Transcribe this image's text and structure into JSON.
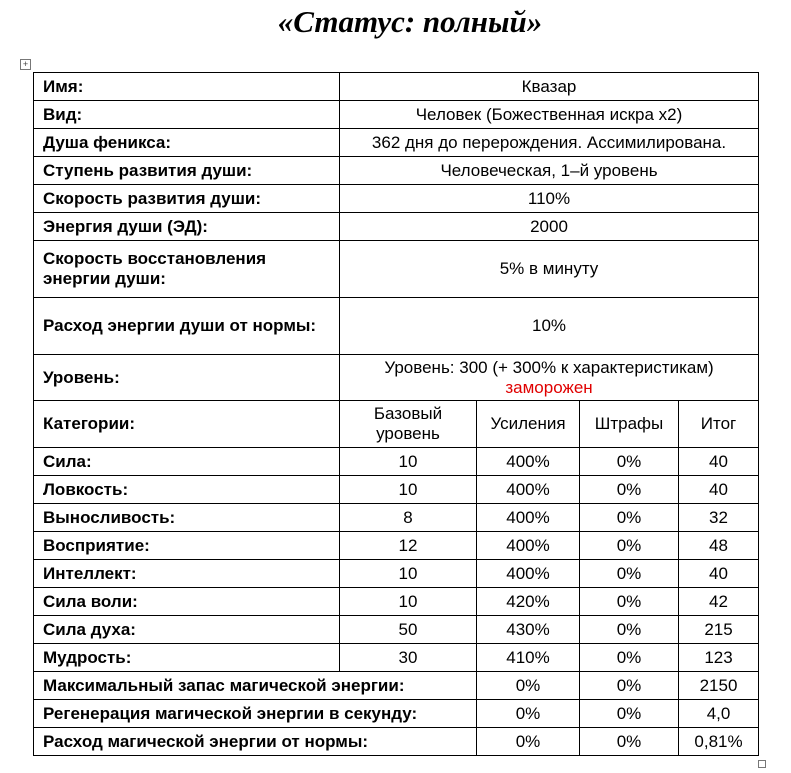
{
  "title": "«Статус: полный»",
  "info": [
    {
      "label": "Имя:",
      "value": "Квазар"
    },
    {
      "label": "Вид:",
      "value": "Человек (Божественная искра x2)"
    },
    {
      "label": "Душа феникса:",
      "value": "362 дня до перерождения. Ассимилирована."
    },
    {
      "label": "Ступень развития души:",
      "value": "Человеческая, 1–й уровень"
    },
    {
      "label": "Скорость развития души:",
      "value": "110%"
    },
    {
      "label": "Энергия души (ЭД):",
      "value": "2000"
    },
    {
      "label": "Скорость восстановления энергии души:",
      "value": "5% в минуту"
    },
    {
      "label": "Расход энергии души от нормы:",
      "value": "10%"
    }
  ],
  "level": {
    "label": "Уровень:",
    "value": "Уровень: 300 (+ 300% к характеристикам)",
    "note": "заморожен"
  },
  "stats": {
    "header": [
      "Категории:",
      "Базовый уровень",
      "Усиления",
      "Штрафы",
      "Итог"
    ],
    "rows": [
      [
        "Сила:",
        "10",
        "400%",
        "0%",
        "40"
      ],
      [
        "Ловкость:",
        "10",
        "400%",
        "0%",
        "40"
      ],
      [
        "Выносливость:",
        "8",
        "400%",
        "0%",
        "32"
      ],
      [
        "Восприятие:",
        "12",
        "400%",
        "0%",
        "48"
      ],
      [
        "Интеллект:",
        "10",
        "400%",
        "0%",
        "40"
      ],
      [
        "Сила воли:",
        "10",
        "420%",
        "0%",
        "42"
      ],
      [
        "Сила духа:",
        "50",
        "430%",
        "0%",
        "215"
      ],
      [
        "Мудрость:",
        "30",
        "410%",
        "0%",
        "123"
      ],
      [
        "Максимальный запас магической энергии:",
        "0%",
        "0%",
        "2150"
      ],
      [
        "Регенерация магической энергии в секунду:",
        "0%",
        "0%",
        "4,0"
      ],
      [
        "Расход магической энергии от нормы:",
        "0%",
        "0%",
        "0,81%"
      ]
    ]
  }
}
